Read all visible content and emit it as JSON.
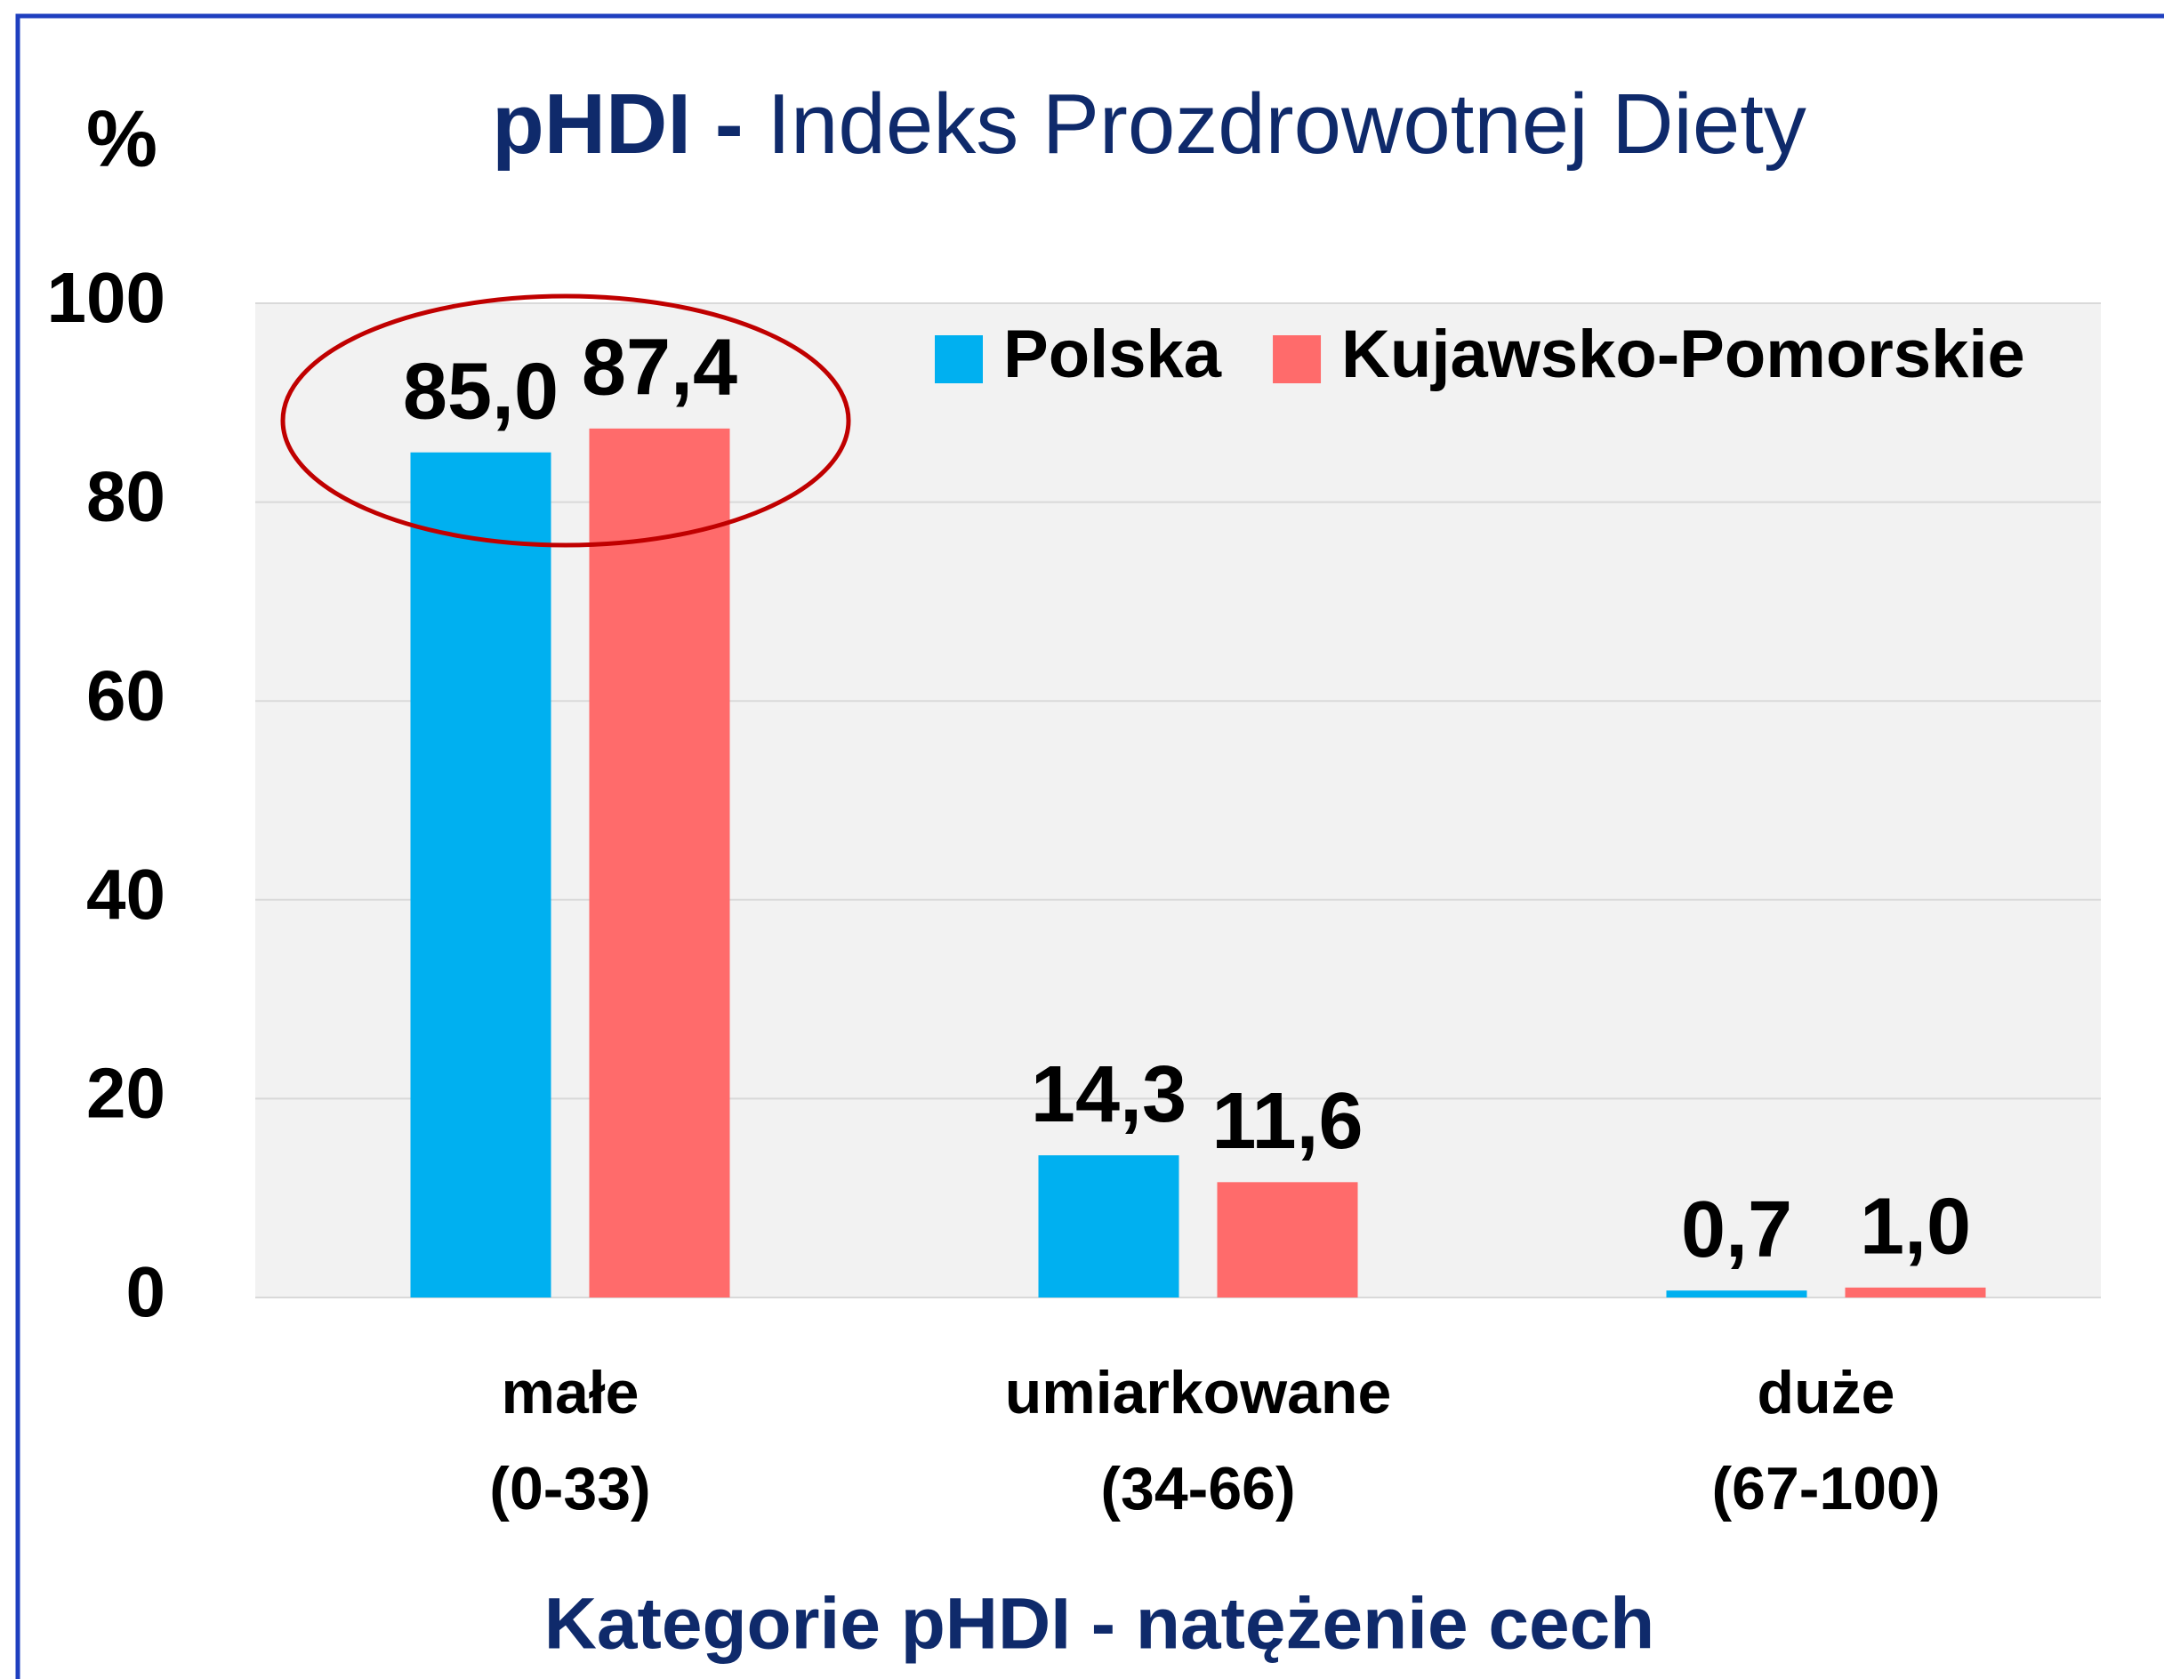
{
  "chart_data": {
    "type": "bar",
    "title_bold": "pHDI -",
    "title": "Indeks Prozdrowotnej Diety",
    "y_label": "%",
    "x_label": "Kategorie pHDI - natężenie cech",
    "categories": [
      [
        "małe",
        "(0-33)"
      ],
      [
        "umiarkowane",
        "(34-66)"
      ],
      [
        "duże",
        "(67-100)"
      ]
    ],
    "series": [
      {
        "name": "Polska",
        "color": "#00b0f0",
        "values": [
          85.0,
          14.3,
          0.7
        ],
        "value_labels": [
          "85,0",
          "14,3",
          "0,7"
        ]
      },
      {
        "name": "Kujawsko-Pomorskie",
        "color": "#ff6b6b",
        "values": [
          87.4,
          11.6,
          1.0
        ],
        "value_labels": [
          "87,4",
          "11,6",
          "1,0"
        ]
      }
    ],
    "ylim": [
      0,
      100
    ],
    "yticks": [
      0,
      20,
      40,
      60,
      80,
      100
    ],
    "grid": true,
    "legend": "top-right"
  }
}
